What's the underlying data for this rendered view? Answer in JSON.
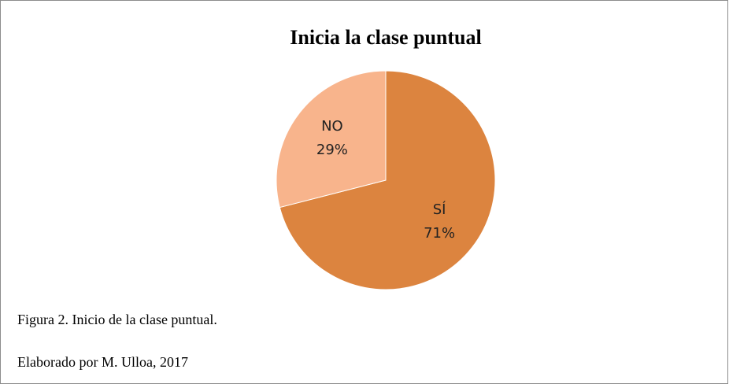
{
  "chart_data": {
    "type": "pie",
    "title": "Inicia la clase puntual",
    "categories": [
      "SÍ",
      "NO"
    ],
    "values": [
      71,
      29
    ],
    "value_labels": [
      "71%",
      "29%"
    ],
    "colors": [
      "#dc843f",
      "#f8b48c"
    ]
  },
  "caption": "Figura 2. Inicio de la clase puntual.",
  "credit": "Elaborado por M. Ulloa, 2017"
}
